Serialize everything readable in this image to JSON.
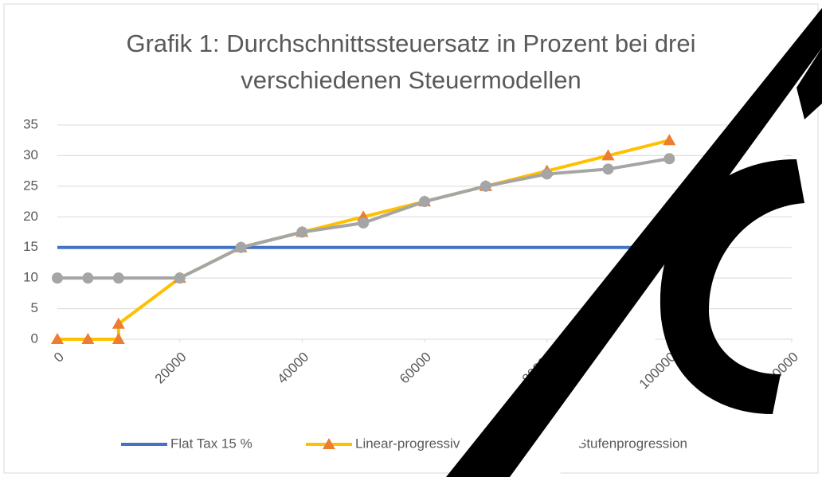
{
  "chart_data": {
    "type": "line",
    "title": "Grafik 1: Durchschnittssteuersatz in Prozent bei drei verschiedenen Steuermodellen",
    "xlim": [
      0,
      120000
    ],
    "xticks": [
      0,
      20000,
      40000,
      60000,
      80000,
      100000,
      120000
    ],
    "ylim": [
      0,
      35
    ],
    "yticks": [
      0,
      5,
      10,
      15,
      20,
      25,
      30,
      35
    ],
    "grid": true,
    "legend": "bottom",
    "series": [
      {
        "name": "Flat Tax 15 %",
        "color": "#4472c4",
        "marker": "none",
        "x": [
          0,
          5000,
          10000,
          20000,
          30000,
          40000,
          50000,
          60000,
          70000,
          80000,
          90000,
          100000
        ],
        "values": [
          15,
          15,
          15,
          15,
          15,
          15,
          15,
          15,
          15,
          15,
          15,
          15
        ]
      },
      {
        "name": "Linear-progressiv",
        "color": "#ffc000",
        "marker_color": "#ed7d31",
        "marker": "triangle",
        "x": [
          0,
          5000,
          10000,
          10000,
          20000,
          30000,
          40000,
          50000,
          60000,
          70000,
          80000,
          90000,
          100000
        ],
        "values": [
          0,
          0,
          0,
          2.5,
          10,
          15,
          17.5,
          20,
          22.5,
          25,
          27.5,
          30,
          32.5
        ]
      },
      {
        "name": "Stufenprogression",
        "color": "#a5a5a5",
        "marker_color": "#a5a5a5",
        "marker": "circle",
        "x": [
          0,
          5000,
          10000,
          20000,
          30000,
          40000,
          50000,
          60000,
          70000,
          80000,
          90000,
          100000
        ],
        "values": [
          10,
          10,
          10,
          10,
          15,
          17.5,
          19,
          22.5,
          25,
          27,
          27.8,
          29.5
        ]
      }
    ]
  }
}
